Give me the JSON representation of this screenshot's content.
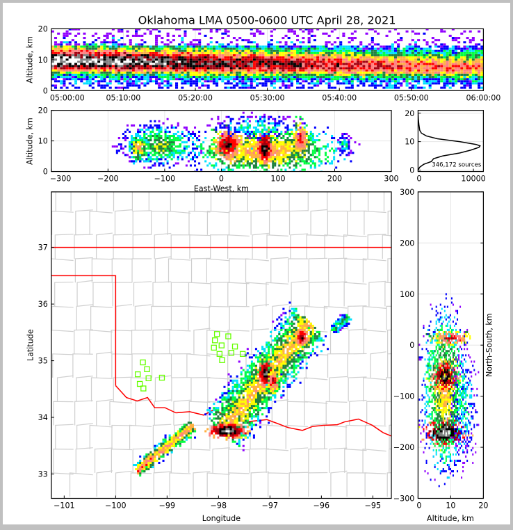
{
  "chart_data": {
    "type": "heatmap",
    "title": "Oklahoma LMA 0500-0600 UTC April 28, 2021",
    "colormap": [
      "#9000ff",
      "#0000ff",
      "#00e0ff",
      "#00ff40",
      "#208040",
      "#ffff00",
      "#ffb040",
      "#ff8080",
      "#ff0000",
      "#a00010",
      "#000000",
      "#808080",
      "#ffffff"
    ],
    "panels": {
      "time_height": {
        "ylabel": "Altitude, km",
        "xlabel": "",
        "xlim_minutes": [
          0,
          60
        ],
        "ylim": [
          0,
          20
        ],
        "xticks": [
          {
            "v": 0,
            "label": "05:00:00"
          },
          {
            "v": 10,
            "label": "05:10:00"
          },
          {
            "v": 20,
            "label": "05:20:00"
          },
          {
            "v": 30,
            "label": "05:30:00"
          },
          {
            "v": 40,
            "label": "05:40:00"
          },
          {
            "v": 50,
            "label": "05:50:00"
          },
          {
            "v": 60,
            "label": "06:00:00"
          }
        ],
        "yticks": [
          {
            "v": 0,
            "label": "0"
          },
          {
            "v": 10,
            "label": "10"
          },
          {
            "v": 20,
            "label": "20"
          }
        ],
        "density_center_alt_km": {
          "start": 9.3,
          "end": 7.0
        },
        "density_relative": {
          "start": 1.0,
          "end": 0.55
        }
      },
      "ew_height": {
        "xlabel": "East-West, km",
        "ylabel": "Altitude, km",
        "xlim": [
          -300,
          300
        ],
        "ylim": [
          0,
          20
        ],
        "xticks": [
          {
            "v": -300,
            "label": "−300"
          },
          {
            "v": -200,
            "label": "−200"
          },
          {
            "v": -100,
            "label": "−100"
          },
          {
            "v": 0,
            "label": "0"
          },
          {
            "v": 100,
            "label": "100"
          },
          {
            "v": 200,
            "label": "200"
          },
          {
            "v": 300,
            "label": "300"
          }
        ],
        "yticks": [
          {
            "v": 0,
            "label": "0"
          },
          {
            "v": 10,
            "label": "10"
          },
          {
            "v": 20,
            "label": "20"
          }
        ],
        "clusters": [
          {
            "x": -110,
            "y": 9,
            "sx": 35,
            "sy": 3.5,
            "level": 5,
            "n": 700
          },
          {
            "x": -148,
            "y": 8,
            "sx": 8,
            "sy": 2,
            "level": 7,
            "n": 120
          },
          {
            "x": 215,
            "y": 9,
            "sx": 10,
            "sy": 2.5,
            "level": 3,
            "n": 120
          },
          {
            "x": 75,
            "y": 7,
            "sx": 55,
            "sy": 3.5,
            "level": 7,
            "n": 1300
          },
          {
            "x": 10,
            "y": 9,
            "sx": 12,
            "sy": 2.5,
            "level": 10,
            "n": 300
          },
          {
            "x": 75,
            "y": 8,
            "sx": 6,
            "sy": 2.5,
            "level": 11,
            "n": 200
          },
          {
            "x": 138,
            "y": 11,
            "sx": 7,
            "sy": 2.5,
            "level": 9,
            "n": 150
          },
          {
            "x": 60,
            "y": 15,
            "sx": 60,
            "sy": 3,
            "level": 3,
            "n": 300
          }
        ]
      },
      "histogram": {
        "annotation": "346,172 sources",
        "xlim": [
          0,
          11800
        ],
        "ylim": [
          -0.5,
          21
        ],
        "xticks": [
          {
            "v": 0,
            "label": "0"
          },
          {
            "v": 10000,
            "label": "10000"
          }
        ],
        "yticks": [
          {
            "v": 0,
            "label": "0"
          },
          {
            "v": 10,
            "label": "10"
          },
          {
            "v": 20,
            "label": "20"
          }
        ],
        "alt_km": [
          0,
          1,
          2,
          3,
          3.5,
          4,
          5,
          6,
          7,
          8,
          8.5,
          9,
          10,
          11,
          12,
          13,
          14,
          16,
          18,
          20
        ],
        "counts": [
          0,
          300,
          1000,
          2400,
          2600,
          2800,
          4500,
          7500,
          9500,
          11000,
          11200,
          10500,
          7500,
          3500,
          1500,
          600,
          300,
          150,
          50,
          0
        ]
      },
      "map": {
        "xlabel": "Longitude",
        "ylabel": "Latitude",
        "xlim": [
          -101.25,
          -94.64
        ],
        "ylim": [
          32.57,
          37.98
        ],
        "xticks": [
          {
            "v": -101,
            "label": "−101"
          },
          {
            "v": -100,
            "label": "−100"
          },
          {
            "v": -99,
            "label": "−99"
          },
          {
            "v": -98,
            "label": "−98"
          },
          {
            "v": -97,
            "label": "−97"
          },
          {
            "v": -96,
            "label": "−96"
          },
          {
            "v": -95,
            "label": "−95"
          }
        ],
        "yticks": [
          {
            "v": 33,
            "label": "33"
          },
          {
            "v": 34,
            "label": "34"
          },
          {
            "v": 35,
            "label": "35"
          },
          {
            "v": 36,
            "label": "36"
          },
          {
            "v": 37,
            "label": "37"
          }
        ],
        "state_border_color": "#ff0000",
        "station_color": "#66ff00",
        "stations": [
          [
            -99.47,
            34.97
          ],
          [
            -99.39,
            34.85
          ],
          [
            -99.57,
            34.76
          ],
          [
            -99.36,
            34.69
          ],
          [
            -99.1,
            34.7
          ],
          [
            -99.53,
            34.59
          ],
          [
            -99.46,
            34.51
          ],
          [
            -98.03,
            35.47
          ],
          [
            -97.81,
            35.43
          ],
          [
            -98.07,
            35.36
          ],
          [
            -97.94,
            35.27
          ],
          [
            -98.09,
            35.23
          ],
          [
            -97.68,
            35.25
          ],
          [
            -97.98,
            35.12
          ],
          [
            -97.75,
            35.14
          ],
          [
            -97.53,
            35.12
          ],
          [
            -97.93,
            35.01
          ]
        ],
        "kansas_border": [
          [
            -101.25,
            37.0
          ],
          [
            -94.64,
            37.0
          ]
        ],
        "panhandle_border": [
          [
            -101.25,
            36.5
          ],
          [
            -100.0,
            36.5
          ],
          [
            -100.0,
            34.56
          ]
        ],
        "red_river": [
          [
            -100.0,
            34.56
          ],
          [
            -99.95,
            34.51
          ],
          [
            -99.79,
            34.35
          ],
          [
            -99.58,
            34.29
          ],
          [
            -99.38,
            34.35
          ],
          [
            -99.24,
            34.17
          ],
          [
            -99.04,
            34.17
          ],
          [
            -98.83,
            34.08
          ],
          [
            -98.56,
            34.1
          ],
          [
            -98.29,
            34.04
          ],
          [
            -98.08,
            34.14
          ],
          [
            -97.74,
            33.96
          ],
          [
            -97.47,
            33.92
          ],
          [
            -97.06,
            33.96
          ],
          [
            -96.85,
            33.89
          ],
          [
            -96.65,
            33.82
          ],
          [
            -96.37,
            33.77
          ],
          [
            -96.17,
            33.84
          ],
          [
            -95.96,
            33.86
          ],
          [
            -95.69,
            33.87
          ],
          [
            -95.55,
            33.92
          ],
          [
            -95.28,
            33.97
          ],
          [
            -95.01,
            33.86
          ],
          [
            -94.8,
            33.73
          ],
          [
            -94.64,
            33.67
          ]
        ],
        "storm_lines": [
          {
            "from": [
              -99.6,
              33.08
            ],
            "to": [
              -98.5,
              33.88
            ],
            "width": 0.06,
            "level": 7,
            "n": 600
          },
          {
            "from": [
              -97.95,
              33.75
            ],
            "to": [
              -96.25,
              35.7
            ],
            "width": 0.22,
            "level": 6,
            "n": 2200
          },
          {
            "from": [
              -95.8,
              35.55
            ],
            "to": [
              -95.5,
              35.8
            ],
            "width": 0.06,
            "level": 4,
            "n": 150
          }
        ],
        "hot_spots": [
          {
            "lon": -97.85,
            "lat": 33.78,
            "sx": 0.18,
            "sy": 0.06,
            "level": 12,
            "n": 250
          },
          {
            "lon": -97.1,
            "lat": 34.78,
            "sx": 0.08,
            "sy": 0.14,
            "level": 11,
            "n": 220
          },
          {
            "lon": -96.4,
            "lat": 35.42,
            "sx": 0.07,
            "sy": 0.1,
            "level": 10,
            "n": 120
          },
          {
            "lon": -96.95,
            "lat": 34.65,
            "sx": 0.06,
            "sy": 0.12,
            "level": 9,
            "n": 100
          }
        ]
      },
      "ns_height": {
        "xlabel": "Altitude, km",
        "ylabel": "North-South, km",
        "xlim": [
          0,
          20
        ],
        "ylim": [
          -300,
          300
        ],
        "xticks": [
          {
            "v": 0,
            "label": "0"
          },
          {
            "v": 10,
            "label": "10"
          },
          {
            "v": 20,
            "label": "20"
          }
        ],
        "yticks": [
          {
            "v": -300,
            "label": "−300"
          },
          {
            "v": -200,
            "label": "−200"
          },
          {
            "v": -100,
            "label": "−100"
          },
          {
            "v": 0,
            "label": "0"
          },
          {
            "v": 100,
            "label": "100"
          },
          {
            "v": 200,
            "label": "200"
          },
          {
            "v": 300,
            "label": "300"
          }
        ],
        "clusters": [
          {
            "x": 8,
            "y": -90,
            "sx": 3.2,
            "sy": 75,
            "level": 6,
            "n": 1700
          },
          {
            "x": 8,
            "y": -60,
            "sx": 2,
            "sy": 15,
            "level": 11,
            "n": 250
          },
          {
            "x": 8,
            "y": -170,
            "sx": 3,
            "sy": 12,
            "level": 12,
            "n": 250
          },
          {
            "x": 10,
            "y": 15,
            "sx": 3,
            "sy": 8,
            "level": 9,
            "n": 150
          },
          {
            "x": 14,
            "y": -120,
            "sx": 3,
            "sy": 80,
            "level": 3,
            "n": 400
          }
        ]
      }
    }
  }
}
